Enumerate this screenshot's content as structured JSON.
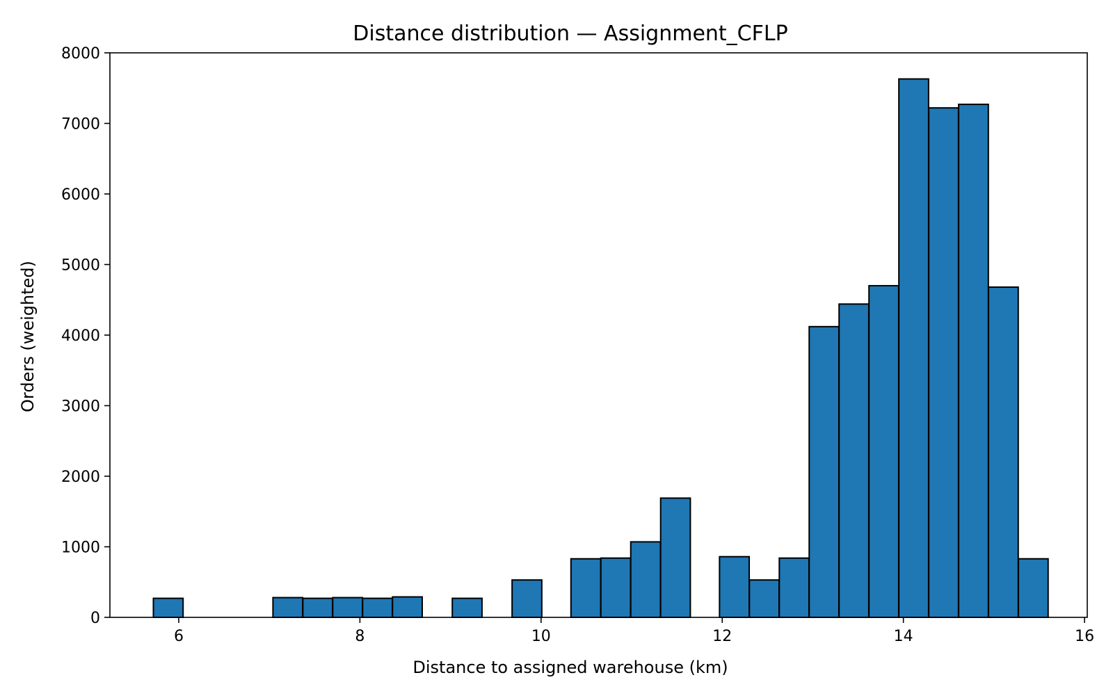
{
  "chart_data": {
    "type": "bar",
    "title": "Distance distribution — Assignment_CFLP",
    "xlabel": "Distance to assigned warehouse (km)",
    "ylabel": "Orders (weighted)",
    "xlim": [
      5.24,
      16.03
    ],
    "ylim": [
      0,
      8000
    ],
    "xticks": [
      6,
      8,
      10,
      12,
      14,
      16
    ],
    "yticks": [
      0,
      1000,
      2000,
      3000,
      4000,
      5000,
      6000,
      7000,
      8000
    ],
    "bin_width": 0.328,
    "bars": [
      {
        "x0": 5.72,
        "value": 270
      },
      {
        "x0": 7.04,
        "value": 280
      },
      {
        "x0": 7.37,
        "value": 270
      },
      {
        "x0": 7.7,
        "value": 280
      },
      {
        "x0": 8.03,
        "value": 270
      },
      {
        "x0": 8.36,
        "value": 290
      },
      {
        "x0": 9.02,
        "value": 270
      },
      {
        "x0": 9.68,
        "value": 530
      },
      {
        "x0": 10.33,
        "value": 830
      },
      {
        "x0": 10.66,
        "value": 840
      },
      {
        "x0": 10.99,
        "value": 1070
      },
      {
        "x0": 11.32,
        "value": 1690
      },
      {
        "x0": 11.97,
        "value": 860
      },
      {
        "x0": 12.3,
        "value": 530
      },
      {
        "x0": 12.63,
        "value": 840
      },
      {
        "x0": 12.96,
        "value": 4120
      },
      {
        "x0": 13.29,
        "value": 4440
      },
      {
        "x0": 13.62,
        "value": 4700
      },
      {
        "x0": 13.95,
        "value": 7630
      },
      {
        "x0": 14.28,
        "value": 7220
      },
      {
        "x0": 14.61,
        "value": 7270
      },
      {
        "x0": 14.94,
        "value": 4680
      },
      {
        "x0": 15.27,
        "value": 830
      }
    ],
    "grid": false,
    "colors": {
      "bar_fill": "#1f77b4",
      "bar_edge": "#000000",
      "axis": "#000000",
      "background": "#ffffff"
    }
  }
}
